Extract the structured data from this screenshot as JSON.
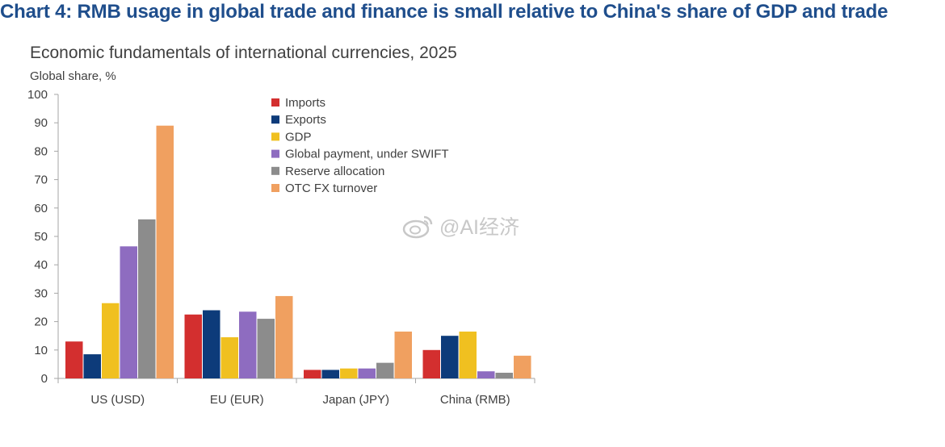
{
  "page": {
    "title": "Chart 4: RMB usage in global trade and finance is small relative to China's share of GDP and trade"
  },
  "watermark": {
    "text": "@AI经济",
    "icon": "weibo-icon"
  },
  "chart_data": {
    "type": "bar",
    "title": "Economic fundamentals of international currencies, 2025",
    "ylabel": "Global share, %",
    "xlabel": "",
    "ylim": [
      0,
      100
    ],
    "yticks": [
      0,
      10,
      20,
      30,
      40,
      50,
      60,
      70,
      80,
      90,
      100
    ],
    "grid": false,
    "legend_position": "top-center",
    "categories": [
      "US (USD)",
      "EU (EUR)",
      "Japan (JPY)",
      "China (RMB)"
    ],
    "series": [
      {
        "name": "Imports",
        "color": "#d32f2f",
        "values": [
          13,
          22.5,
          3,
          10
        ]
      },
      {
        "name": "Exports",
        "color": "#0d3b7a",
        "values": [
          8.5,
          24,
          3,
          15
        ]
      },
      {
        "name": "GDP",
        "color": "#f0c020",
        "values": [
          26.5,
          14.5,
          3.5,
          16.5
        ]
      },
      {
        "name": "Global payment, under SWIFT",
        "color": "#8e6cc0",
        "values": [
          46.5,
          23.5,
          3.5,
          2.5
        ]
      },
      {
        "name": "Reserve allocation",
        "color": "#8c8c8c",
        "values": [
          56,
          21,
          5.5,
          2
        ]
      },
      {
        "name": "OTC FX turnover",
        "color": "#f0a060",
        "values": [
          89,
          29,
          16.5,
          8
        ]
      }
    ]
  }
}
